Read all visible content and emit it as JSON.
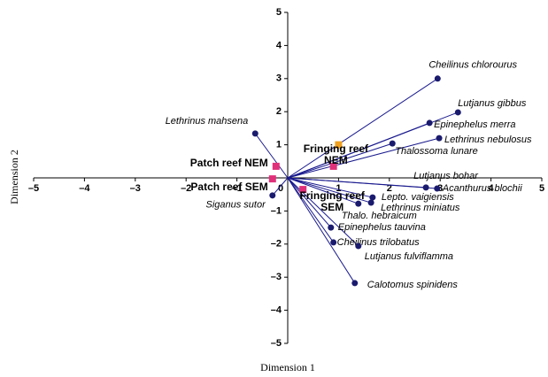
{
  "chart_data": {
    "type": "biplot",
    "x_label": "Dimension 1",
    "y_label": "Dimension 2",
    "xlim": [
      -5,
      5
    ],
    "ylim": [
      -5,
      5
    ],
    "xticks": [
      {
        "value": -5,
        "label": "–5"
      },
      {
        "value": -4,
        "label": "–4"
      },
      {
        "value": -3,
        "label": "–3"
      },
      {
        "value": -2,
        "label": "–2"
      },
      {
        "value": -1,
        "label": "–1"
      },
      0,
      1,
      2,
      3,
      4,
      5
    ],
    "yticks": [
      {
        "value": -5,
        "label": "–5"
      },
      {
        "value": -4,
        "label": "–4"
      },
      {
        "value": -3,
        "label": "–3"
      },
      {
        "value": -2,
        "label": "–2"
      },
      {
        "value": -1,
        "label": "–1"
      },
      1,
      2,
      3,
      4,
      5
    ],
    "species_color": "#1a1a6e",
    "species": [
      {
        "name": "Cheilinus chlorourus",
        "x": 2.95,
        "y": 3.0
      },
      {
        "name": "Lutjanus gibbus",
        "x": 3.35,
        "y": 1.98
      },
      {
        "name": "Epinephelus merra",
        "x": 2.79,
        "y": 1.66
      },
      {
        "name": "Lethrinus nebulosus",
        "x": 2.98,
        "y": 1.2
      },
      {
        "name": "Thalossoma lunare",
        "x": 2.06,
        "y": 1.04
      },
      {
        "name": "Lethrinus mahsena",
        "x": -0.64,
        "y": 1.34
      },
      {
        "name": "Lutjanus bohar",
        "x": 2.72,
        "y": -0.29
      },
      {
        "name": "Acanthurus blochii",
        "x": 2.94,
        "y": -0.32
      },
      {
        "name": "Lepto. vaigiensis",
        "x": 1.67,
        "y": -0.59
      },
      {
        "name": "Lethrinus miniatus",
        "x": 1.64,
        "y": -0.75
      },
      {
        "name": "Thalo. hebraicum",
        "x": 1.39,
        "y": -0.78
      },
      {
        "name": "Siganus sutor",
        "x": -0.3,
        "y": -0.53
      },
      {
        "name": "Epinephelus tauvina",
        "x": 0.85,
        "y": -1.5
      },
      {
        "name": "Cheilinus trilobatus",
        "x": 0.9,
        "y": -1.95
      },
      {
        "name": "Lutjanus fulviflamma",
        "x": 1.39,
        "y": -2.06
      },
      {
        "name": "Calotomus spinidens",
        "x": 1.32,
        "y": -3.18
      }
    ],
    "sites": [
      {
        "name": "Patch reef NEM",
        "x": -0.23,
        "y": 0.35,
        "color": "#e0307a"
      },
      {
        "name": "Patch reef SEM",
        "x": -0.3,
        "y": -0.03,
        "color": "#e0307a"
      },
      {
        "name": "Fringing reef NEM",
        "x": 1.0,
        "y": 1.0,
        "color": "#f0a020"
      },
      {
        "name": null,
        "x": 0.9,
        "y": 0.35,
        "color": "#e0307a"
      },
      {
        "name": "Fringing reef SEM",
        "x": 0.3,
        "y": -0.35,
        "color": "#e0307a"
      }
    ]
  }
}
